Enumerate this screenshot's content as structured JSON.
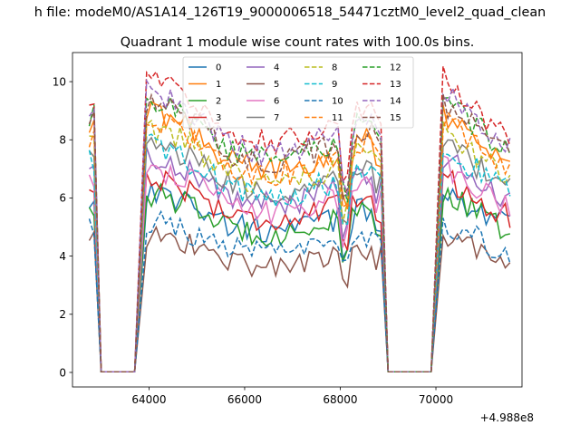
{
  "chart_data": {
    "type": "line",
    "suptitle": "h file: modeM0/AS1A14_126T19_9000006518_54471cztM0_level2_quad_clean",
    "title": "Quadrant 1 module wise count rates with 100.0s bins.",
    "xlabel": "",
    "ylabel": "",
    "x_offset_label": "+4.988e8",
    "xlim": [
      62400,
      71800
    ],
    "ylim": [
      -0.5,
      11.0
    ],
    "x_ticks": [
      64000,
      66000,
      68000,
      70000
    ],
    "x_tick_labels": [
      "64000",
      "66000",
      "68000",
      "70000"
    ],
    "y_ticks": [
      0,
      2,
      4,
      6,
      8,
      10
    ],
    "y_tick_labels": [
      "0",
      "2",
      "4",
      "6",
      "8",
      "10"
    ],
    "legend_position": "upper-center",
    "segments": [
      {
        "start": 62750,
        "end": 62900,
        "active": true
      },
      {
        "start": 63000,
        "end": 63750,
        "active": false
      },
      {
        "start": 63950,
        "end": 68900,
        "active": true
      },
      {
        "start": 69000,
        "end": 69950,
        "active": false
      },
      {
        "start": 70150,
        "end": 71550,
        "active": true
      }
    ],
    "series": [
      {
        "name": "0",
        "color": "#1f77b4",
        "dash": "solid",
        "level": 5.3
      },
      {
        "name": "1",
        "color": "#ff7f0e",
        "dash": "solid",
        "level": 7.6
      },
      {
        "name": "2",
        "color": "#2ca02c",
        "dash": "solid",
        "level": 5.2
      },
      {
        "name": "3",
        "color": "#d62728",
        "dash": "solid",
        "level": 5.7
      },
      {
        "name": "4",
        "color": "#9467bd",
        "dash": "solid",
        "level": 6.3
      },
      {
        "name": "5",
        "color": "#8c564b",
        "dash": "solid",
        "level": 4.0
      },
      {
        "name": "6",
        "color": "#e377c2",
        "dash": "solid",
        "level": 6.0
      },
      {
        "name": "7",
        "color": "#7f7f7f",
        "dash": "solid",
        "level": 6.7
      },
      {
        "name": "8",
        "color": "#bcbd22",
        "dash": "dashed",
        "level": 7.1
      },
      {
        "name": "9",
        "color": "#17becf",
        "dash": "dashed",
        "level": 6.6
      },
      {
        "name": "10",
        "color": "#1f77b4",
        "dash": "dashed",
        "level": 4.4
      },
      {
        "name": "11",
        "color": "#ff7f0e",
        "dash": "dashed",
        "level": 7.4
      },
      {
        "name": "12",
        "color": "#2ca02c",
        "dash": "dashed",
        "level": 8.0
      },
      {
        "name": "13",
        "color": "#d62728",
        "dash": "dashed",
        "level": 8.6
      },
      {
        "name": "14",
        "color": "#9467bd",
        "dash": "dashed",
        "level": 8.2
      },
      {
        "name": "15",
        "color": "#8c564b",
        "dash": "dashed",
        "level": 7.9
      }
    ]
  }
}
